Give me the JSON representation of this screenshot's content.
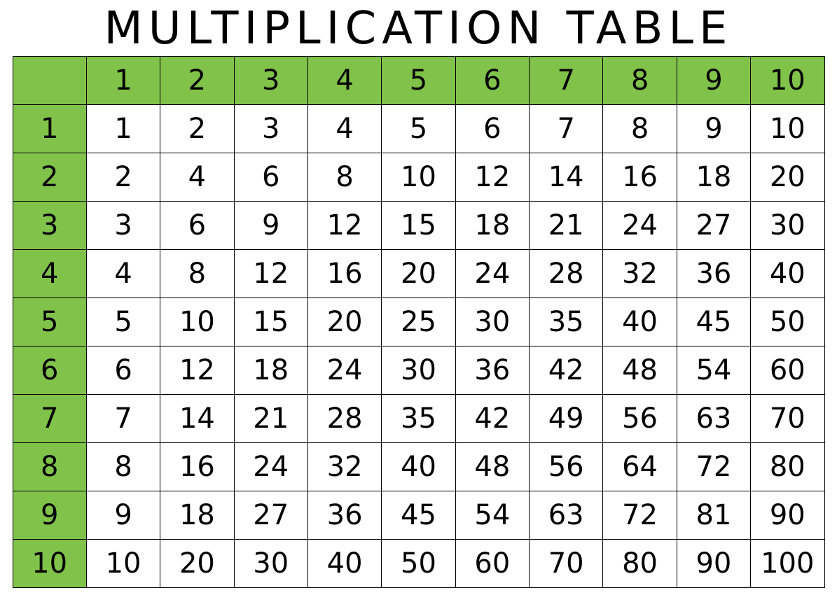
{
  "title": "MULTIPLICATION TABLE",
  "table": {
    "type": "table",
    "header_bg": "#80c24a",
    "cell_bg": "#ffffff",
    "border_color": "#000000",
    "text_color": "#000000",
    "title_fontsize": 64,
    "cell_fontsize": 40,
    "col_headers": [
      "1",
      "2",
      "3",
      "4",
      "5",
      "6",
      "7",
      "8",
      "9",
      "10"
    ],
    "row_headers": [
      "1",
      "2",
      "3",
      "4",
      "5",
      "6",
      "7",
      "8",
      "9",
      "10"
    ],
    "rows": [
      [
        "1",
        "2",
        "3",
        "4",
        "5",
        "6",
        "7",
        "8",
        "9",
        "10"
      ],
      [
        "2",
        "4",
        "6",
        "8",
        "10",
        "12",
        "14",
        "16",
        "18",
        "20"
      ],
      [
        "3",
        "6",
        "9",
        "12",
        "15",
        "18",
        "21",
        "24",
        "27",
        "30"
      ],
      [
        "4",
        "8",
        "12",
        "16",
        "20",
        "24",
        "28",
        "32",
        "36",
        "40"
      ],
      [
        "5",
        "10",
        "15",
        "20",
        "25",
        "30",
        "35",
        "40",
        "45",
        "50"
      ],
      [
        "6",
        "12",
        "18",
        "24",
        "30",
        "36",
        "42",
        "48",
        "54",
        "60"
      ],
      [
        "7",
        "14",
        "21",
        "28",
        "35",
        "42",
        "49",
        "56",
        "63",
        "70"
      ],
      [
        "8",
        "16",
        "24",
        "32",
        "40",
        "48",
        "56",
        "64",
        "72",
        "80"
      ],
      [
        "9",
        "18",
        "27",
        "36",
        "45",
        "54",
        "63",
        "72",
        "81",
        "90"
      ],
      [
        "10",
        "20",
        "30",
        "40",
        "50",
        "60",
        "70",
        "80",
        "90",
        "100"
      ]
    ]
  }
}
